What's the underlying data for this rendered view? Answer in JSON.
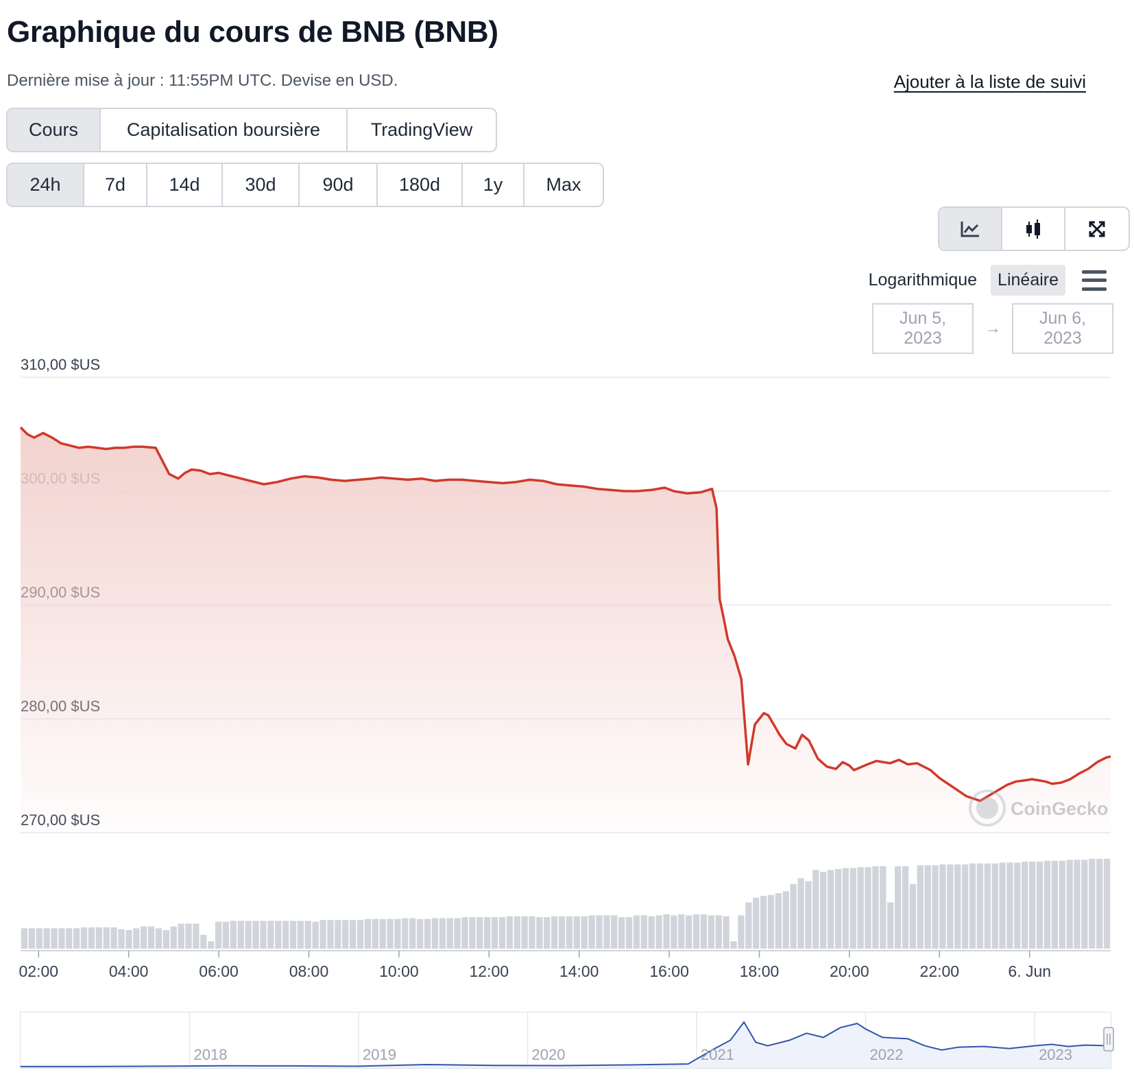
{
  "header": {
    "title": "Graphique du cours de BNB (BNB)",
    "subtitle": "Dernière mise à jour : 11:55PM UTC. Devise en USD.",
    "watchlist_label": "Ajouter à la liste de suivi"
  },
  "view_tabs": [
    {
      "label": "Cours",
      "active": true
    },
    {
      "label": "Capitalisation boursière",
      "active": false
    },
    {
      "label": "TradingView",
      "active": false
    }
  ],
  "range_tabs": [
    {
      "label": "24h",
      "active": true
    },
    {
      "label": "7d",
      "active": false
    },
    {
      "label": "14d",
      "active": false
    },
    {
      "label": "30d",
      "active": false
    },
    {
      "label": "90d",
      "active": false
    },
    {
      "label": "180d",
      "active": false
    },
    {
      "label": "1y",
      "active": false
    },
    {
      "label": "Max",
      "active": false
    }
  ],
  "chart_type_buttons": [
    {
      "icon": "line-chart-icon",
      "active": true
    },
    {
      "icon": "candlestick-icon",
      "active": false
    },
    {
      "icon": "expand-icon",
      "active": false
    }
  ],
  "scale": {
    "log_label": "Logarithmique",
    "linear_label": "Linéaire",
    "active": "linear"
  },
  "date_range": {
    "from": "Jun 5, 2023",
    "to": "Jun 6, 2023",
    "arrow": "→"
  },
  "watermark": "CoinGecko",
  "colors": {
    "line": "#d0392b",
    "fill_top": "#f2d0cc",
    "volume": "#d1d5db",
    "navigator_line": "#3355aa",
    "grid": "#e5e7eb"
  },
  "chart_data": [
    {
      "type": "line",
      "title": "",
      "xlabel": "",
      "ylabel": "",
      "ylim": [
        270,
        310
      ],
      "yticks": [
        310,
        300,
        290,
        280,
        270
      ],
      "ytick_labels": [
        "310,00 $US",
        "300,00 $US",
        "290,00 $US",
        "280,00 $US",
        "270,00 $US"
      ],
      "xticks": [
        "02:00",
        "04:00",
        "06:00",
        "08:00",
        "10:00",
        "12:00",
        "14:00",
        "16:00",
        "18:00",
        "20:00",
        "22:00",
        "6. Jun"
      ],
      "xtick_hours": [
        2,
        4,
        6,
        8,
        10,
        12,
        14,
        16,
        18,
        20,
        22,
        24
      ],
      "x_range_hours": [
        1.6,
        25.8
      ],
      "grid": true,
      "series": [
        {
          "x": [
            1.6,
            1.75,
            1.9,
            2.1,
            2.3,
            2.5,
            2.7,
            2.9,
            3.1,
            3.3,
            3.5,
            3.7,
            3.9,
            4.1,
            4.3,
            4.6,
            4.9,
            5.1,
            5.25,
            5.4,
            5.6,
            5.8,
            6.0,
            6.2,
            6.4,
            6.6,
            6.8,
            7.0,
            7.3,
            7.6,
            7.9,
            8.2,
            8.5,
            8.8,
            9.1,
            9.4,
            9.6,
            9.9,
            10.2,
            10.5,
            10.8,
            11.1,
            11.4,
            11.7,
            12.0,
            12.3,
            12.6,
            12.9,
            13.2,
            13.5,
            13.8,
            14.1,
            14.4,
            14.7,
            15.0,
            15.3,
            15.6,
            15.9,
            16.1,
            16.4,
            16.7,
            16.95,
            17.05,
            17.12,
            17.2,
            17.3,
            17.45,
            17.6,
            17.75,
            17.9,
            18.0,
            18.1,
            18.2,
            18.35,
            18.45,
            18.6,
            18.8,
            18.95,
            19.1,
            19.3,
            19.5,
            19.7,
            19.85,
            20.0,
            20.1,
            20.4,
            20.6,
            20.9,
            21.1,
            21.3,
            21.5,
            21.8,
            22.0,
            22.3,
            22.6,
            22.9,
            23.2,
            23.5,
            23.7,
            23.9,
            24.05,
            24.2,
            24.35,
            24.5,
            24.7,
            24.9,
            25.1,
            25.3,
            25.5,
            25.7,
            25.8
          ],
          "values": [
            305.6,
            305.0,
            304.7,
            305.1,
            304.7,
            304.2,
            304.0,
            303.8,
            303.9,
            303.8,
            303.7,
            303.8,
            303.8,
            303.9,
            303.9,
            303.8,
            301.5,
            301.1,
            301.6,
            301.9,
            301.8,
            301.5,
            301.6,
            301.4,
            301.2,
            301.0,
            300.8,
            300.6,
            300.8,
            301.1,
            301.3,
            301.2,
            301.0,
            300.9,
            301.0,
            301.1,
            301.2,
            301.1,
            301.0,
            301.1,
            300.9,
            301.0,
            301.0,
            300.9,
            300.8,
            300.7,
            300.8,
            301.0,
            300.9,
            300.6,
            300.5,
            300.4,
            300.2,
            300.1,
            300.0,
            300.0,
            300.1,
            300.3,
            300.0,
            299.8,
            299.9,
            300.2,
            298.5,
            290.5,
            289.0,
            287.0,
            285.5,
            283.5,
            276.0,
            279.5,
            280.0,
            280.5,
            280.3,
            279.3,
            278.6,
            277.8,
            277.4,
            278.6,
            278.1,
            276.5,
            275.8,
            275.6,
            276.2,
            275.9,
            275.5,
            276.0,
            276.3,
            276.1,
            276.4,
            276.0,
            276.1,
            275.5,
            274.8,
            274.0,
            273.2,
            272.8,
            273.5,
            274.2,
            274.5,
            274.6,
            274.7,
            274.6,
            274.5,
            274.3,
            274.4,
            274.7,
            275.2,
            275.6,
            276.2,
            276.6,
            276.7
          ]
        }
      ],
      "volume": {
        "note_units": "relative (fraction of panel height)",
        "values": [
          0.22,
          0.22,
          0.22,
          0.22,
          0.22,
          0.22,
          0.22,
          0.22,
          0.23,
          0.23,
          0.23,
          0.23,
          0.23,
          0.21,
          0.2,
          0.22,
          0.24,
          0.24,
          0.22,
          0.2,
          0.24,
          0.27,
          0.27,
          0.27,
          0.15,
          0.08,
          0.29,
          0.29,
          0.3,
          0.3,
          0.3,
          0.3,
          0.3,
          0.3,
          0.3,
          0.3,
          0.3,
          0.3,
          0.3,
          0.29,
          0.31,
          0.31,
          0.31,
          0.31,
          0.31,
          0.31,
          0.32,
          0.32,
          0.32,
          0.32,
          0.32,
          0.33,
          0.33,
          0.32,
          0.32,
          0.33,
          0.33,
          0.33,
          0.33,
          0.34,
          0.34,
          0.34,
          0.34,
          0.34,
          0.34,
          0.35,
          0.35,
          0.35,
          0.35,
          0.34,
          0.34,
          0.35,
          0.35,
          0.35,
          0.35,
          0.35,
          0.36,
          0.36,
          0.36,
          0.36,
          0.34,
          0.34,
          0.36,
          0.36,
          0.35,
          0.36,
          0.37,
          0.36,
          0.37,
          0.36,
          0.37,
          0.37,
          0.36,
          0.36,
          0.35,
          0.08,
          0.36,
          0.5,
          0.55,
          0.57,
          0.58,
          0.6,
          0.62,
          0.7,
          0.76,
          0.73,
          0.85,
          0.83,
          0.85,
          0.86,
          0.87,
          0.87,
          0.88,
          0.88,
          0.89,
          0.89,
          0.5,
          0.89,
          0.89,
          0.7,
          0.9,
          0.9,
          0.9,
          0.91,
          0.91,
          0.91,
          0.91,
          0.92,
          0.92,
          0.92,
          0.92,
          0.93,
          0.93,
          0.93,
          0.94,
          0.94,
          0.94,
          0.95,
          0.95,
          0.95,
          0.96,
          0.96,
          0.96,
          0.97,
          0.97,
          0.97
        ]
      }
    },
    {
      "type": "area",
      "title": "",
      "xticks": [
        "2018",
        "2019",
        "2020",
        "2021",
        "2022",
        "2023"
      ],
      "x_range_years": [
        2017.0,
        2023.45
      ],
      "ylim": [
        0,
        700
      ],
      "series": [
        {
          "x": [
            2017.0,
            2017.5,
            2017.9,
            2018.2,
            2018.6,
            2019.0,
            2019.4,
            2019.8,
            2020.2,
            2020.6,
            2020.95,
            2021.1,
            2021.2,
            2021.28,
            2021.35,
            2021.42,
            2021.55,
            2021.65,
            2021.75,
            2021.85,
            2021.95,
            2022.0,
            2022.1,
            2022.25,
            2022.35,
            2022.45,
            2022.55,
            2022.7,
            2022.85,
            2023.0,
            2023.1,
            2023.2,
            2023.3,
            2023.45
          ],
          "values": [
            1,
            2,
            8,
            12,
            11,
            6,
            30,
            18,
            15,
            25,
            38,
            250,
            380,
            640,
            350,
            300,
            380,
            480,
            420,
            560,
            620,
            540,
            420,
            400,
            300,
            240,
            280,
            290,
            260,
            300,
            320,
            290,
            310,
            300
          ]
        }
      ]
    }
  ]
}
